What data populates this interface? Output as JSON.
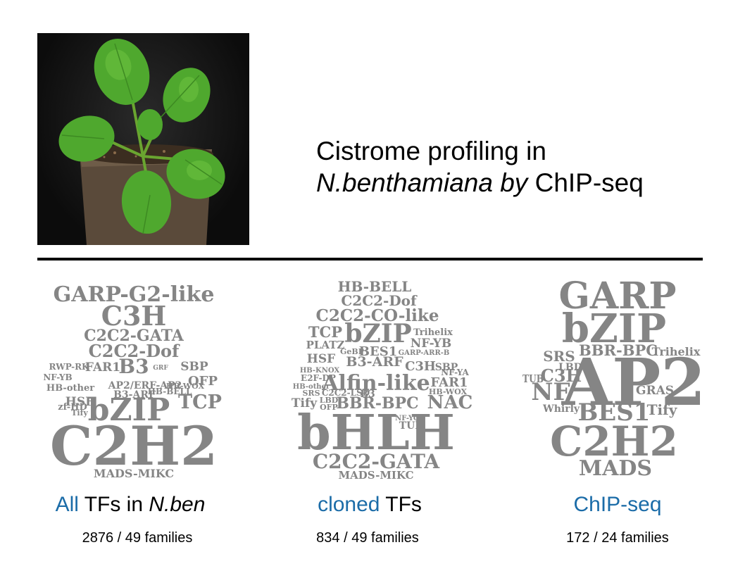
{
  "title": {
    "line1": "Cistrome profiling in",
    "line2_italic": "N.benthamiana by",
    "line2_rest": " ChIP-seq"
  },
  "photo": {
    "subject": "plant-photo"
  },
  "clouds": [
    {
      "words": [
        "GARP-G2-like",
        "C3H",
        "C2C2-GATA",
        "C2C2-Dof",
        "FAR1",
        "B3",
        "RWP-RK",
        "SBP",
        "NF-YB",
        "GRF",
        "OFP",
        "HB-other",
        "HSF",
        "AP2/ERF-AP2",
        "HB-WOX",
        "Tify",
        "B3-ARF",
        "HB-BELL",
        "TCP",
        "zf-HD",
        "bZIP",
        "C2H2",
        "MADS-MIKC"
      ]
    },
    {
      "words": [
        "HB-BELL",
        "C2C2-Dof",
        "C2C2-CO-like",
        "TCP",
        "bZIP",
        "Trihelix",
        "PLATZ",
        "NF-YB",
        "GeBP",
        "BES1",
        "GARP-ARR-B",
        "HSF",
        "B3-ARF",
        "HB-KNOX",
        "C3H",
        "SBP",
        "NF-YA",
        "E2F-DP",
        "Alfin-like",
        "FAR1",
        "HB-other",
        "C2C2-LSD",
        "B3",
        "HB-WOX",
        "SRS",
        "Tify",
        "BBR-BPC",
        "NAC",
        "LBD",
        "OFP",
        "NF-YC",
        "TUB",
        "bHLH",
        "C2C2-GATA",
        "MADS-MIKC"
      ]
    },
    {
      "words": [
        "GARP",
        "bZIP",
        "SRS",
        "BBR-BPC",
        "Trihelix",
        "LBD",
        "TUB",
        "C3H",
        "AP2",
        "NF",
        "GRAS",
        "Whirly",
        "BES1",
        "Tify",
        "C2H2",
        "MADS"
      ]
    }
  ],
  "captions": [
    {
      "blue": "All",
      "rest": " TFs in ",
      "italic": "N.ben",
      "count": "2876  / 49 families"
    },
    {
      "blue": "cloned",
      "rest": " TFs",
      "italic": "",
      "count": "834  /  49 families"
    },
    {
      "blue": "ChIP-seq",
      "rest": "",
      "italic": "",
      "count": "172 / 24 families"
    }
  ],
  "colors": {
    "caption_blue": "#1b6ca8",
    "cloud_gray": "#858585",
    "rule": "#000000"
  }
}
